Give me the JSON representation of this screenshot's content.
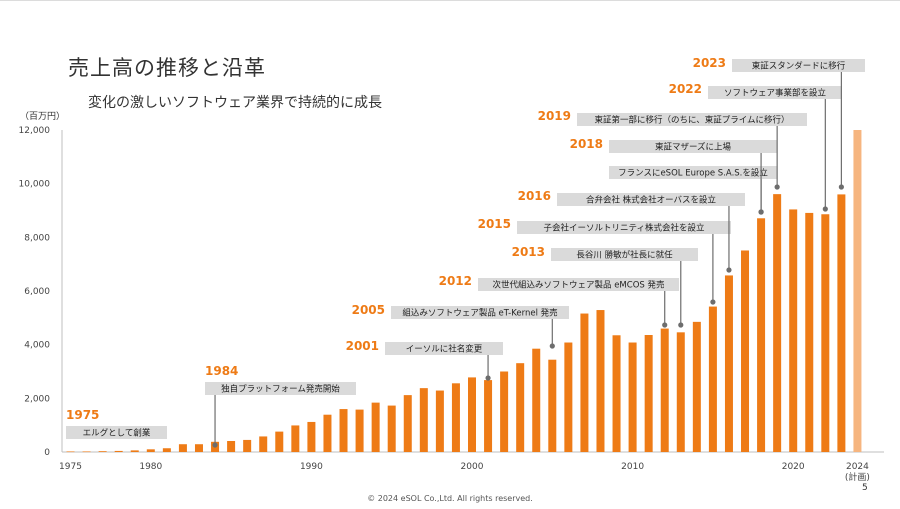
{
  "page": {
    "title": "売上高の推移と沿革",
    "subtitle": "変化の激しいソフトウェア業界で持続的に成長",
    "unit_label": "（百万円）",
    "footer": "© 2024 eSOL Co.,Ltd. All rights reserved.",
    "page_number": "5"
  },
  "colors": {
    "bar": "#ee7b16",
    "bar_forecast": "#f6b57f",
    "annotation_box": "#dadada",
    "annotation_year": "#ee7b16",
    "pin": "#6d6d6d",
    "axis": "#bfbfbf"
  },
  "chart_data": {
    "type": "bar",
    "title": "",
    "xlabel": "",
    "ylabel": "（百万円）",
    "ylim": [
      0,
      12000
    ],
    "yticks": [
      0,
      2000,
      4000,
      6000,
      8000,
      10000,
      12000
    ],
    "ytick_labels": [
      "0",
      "2,000",
      "4,000",
      "6,000",
      "8,000",
      "10,000",
      "12,000"
    ],
    "xtick_labels": [
      {
        "year": 1975,
        "label": "1975"
      },
      {
        "year": 1980,
        "label": "1980"
      },
      {
        "year": 1990,
        "label": "1990"
      },
      {
        "year": 2000,
        "label": "2000"
      },
      {
        "year": 2010,
        "label": "2010"
      },
      {
        "year": 2020,
        "label": "2020"
      },
      {
        "year": 2024,
        "label": "2024",
        "label2": "(計画)"
      }
    ],
    "grid": false,
    "series": [
      {
        "years": [
          1975,
          1976,
          1977,
          1978,
          1979,
          1980,
          1981,
          1982,
          1983,
          1984,
          1985,
          1986,
          1987,
          1988,
          1989,
          1990,
          1991,
          1992,
          1993,
          1994,
          1995,
          1996,
          1997,
          1998,
          1999,
          2000,
          2001,
          2002,
          2003,
          2004,
          2005,
          2006,
          2007,
          2008,
          2009,
          2010,
          2011,
          2012,
          2013,
          2014,
          2015,
          2016,
          2017,
          2018,
          2019,
          2020,
          2021,
          2022,
          2023
        ],
        "values": [
          20,
          20,
          30,
          40,
          60,
          100,
          140,
          290,
          290,
          380,
          410,
          450,
          580,
          760,
          990,
          1120,
          1390,
          1600,
          1580,
          1840,
          1730,
          2120,
          2380,
          2290,
          2560,
          2780,
          2680,
          3000,
          3310,
          3850,
          3440,
          4080,
          5160,
          5290,
          4350,
          4080,
          4360,
          4600,
          4460,
          4850,
          5420,
          6580,
          7510,
          8710,
          9610,
          9040,
          8910,
          8860,
          9600
        ],
        "forecast": {
          "year": 2024,
          "value": 12000
        }
      }
    ],
    "annotations": [
      {
        "year_label": "1975",
        "text": "エルグとして創業",
        "bar_year": 1975
      },
      {
        "year_label": "1984",
        "text": "独自プラットフォーム発売開始",
        "bar_year": 1984
      },
      {
        "year_label": "2001",
        "text": "イーソルに社名変更",
        "bar_year": 2001
      },
      {
        "year_label": "2005",
        "text": "組込みソフトウェア製品 eT-Kernel 発売",
        "bar_year": 2005
      },
      {
        "year_label": "2012",
        "text": "次世代組込みソフトウェア製品 eMCOS 発売",
        "bar_year": 2012
      },
      {
        "year_label": "2013",
        "text": "長谷川 勝敏が社長に就任",
        "bar_year": 2013
      },
      {
        "year_label": "2015",
        "text": "子会社イーソルトリニティ株式会社を設立",
        "bar_year": 2015
      },
      {
        "year_label": "2016",
        "text": "合弁会社 株式会社オーバスを設立",
        "bar_year": 2016
      },
      {
        "year_label": "",
        "text": "フランスにeSOL Europe S.A.S.を設立",
        "bar_year": 2018
      },
      {
        "year_label": "2018",
        "text": "東証マザーズに上場",
        "bar_year": 2018
      },
      {
        "year_label": "2019",
        "text": "東証第一部に移行（のちに、東証プライムに移行）",
        "bar_year": 2019
      },
      {
        "year_label": "2022",
        "text": "ソフトウェア事業部を設立",
        "bar_year": 2022
      },
      {
        "year_label": "2023",
        "text": "東証スタンダードに移行",
        "bar_year": 2023
      }
    ]
  }
}
